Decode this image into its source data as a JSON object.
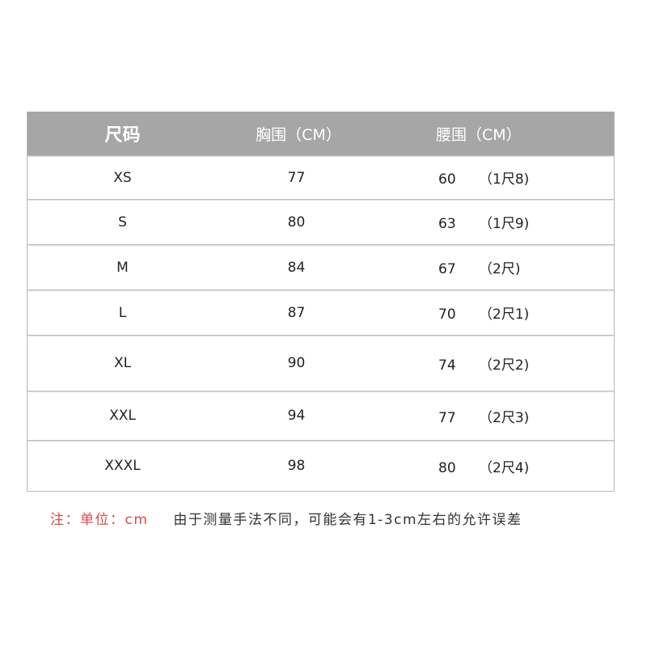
{
  "table": {
    "headers": [
      "尺码",
      "胸围（CM）",
      "腰围（CM）"
    ],
    "rows": [
      {
        "size": "XS",
        "chest": "77",
        "waist": "60",
        "waist_chi": "（1尺8)"
      },
      {
        "size": "S",
        "chest": "80",
        "waist": "63",
        "waist_chi": "（1尺9)"
      },
      {
        "size": "M",
        "chest": "84",
        "waist": "67",
        "waist_chi": "（2尺)"
      },
      {
        "size": "L",
        "chest": "87",
        "waist": "70",
        "waist_chi": "（2尺1)"
      },
      {
        "size": "XL",
        "chest": "90",
        "waist": "74",
        "waist_chi": "（2尺2)"
      },
      {
        "size": "XXL",
        "chest": "94",
        "waist": "77",
        "waist_chi": "（2尺3)"
      },
      {
        "size": "XXXL",
        "chest": "98",
        "waist": "80",
        "waist_chi": "（2尺4)"
      }
    ]
  },
  "note": {
    "unit": "注：单位：cm",
    "text": "由于测量手法不同，可能会有1-3cm左右的允许误差"
  },
  "colors": {
    "header_bg": "#a6a6a6",
    "note_red": "#d94a4a"
  }
}
